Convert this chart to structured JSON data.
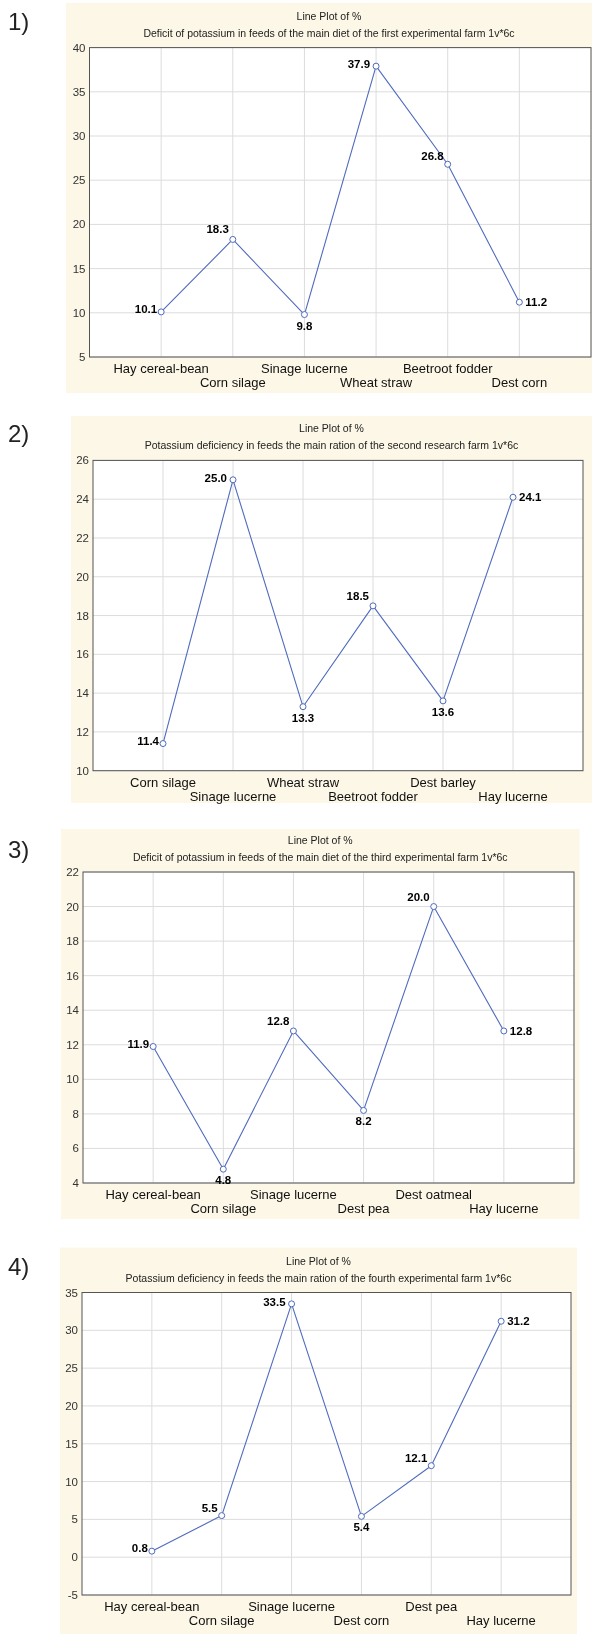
{
  "chart_data": [
    {
      "type": "line",
      "title": "Line Plot of %",
      "subtitle": "Deficit of potassium in feeds of the main diet of the first experimental farm 1v*6c",
      "annotations": [
        "1)"
      ],
      "categories": [
        "Hay cereal-bean",
        "Corn silage",
        "Sinage lucerne",
        "Wheat straw",
        "Beetroot fodder",
        "Dest corn"
      ],
      "values": [
        10.1,
        18.3,
        9.8,
        37.9,
        26.8,
        11.2
      ],
      "value_labels": [
        "10.1",
        "18.3",
        "9.8",
        "37.9",
        "26.8",
        "11.2"
      ],
      "color": "#4f6bbd",
      "ylim": [
        5,
        40
      ],
      "yticks": [
        5,
        10,
        15,
        20,
        25,
        30,
        35,
        40
      ],
      "grid": true,
      "marker": "circle"
    },
    {
      "type": "line",
      "title": "Line Plot of %",
      "subtitle": "Potassium deficiency in feeds the main ration of the second research farm 1v*6c",
      "annotations": [
        "2)"
      ],
      "categories": [
        "Corn silage",
        "Sinage lucerne",
        "Wheat straw",
        "Beetroot fodder",
        "Dest barley",
        "Hay lucerne"
      ],
      "values": [
        11.4,
        25.0,
        13.3,
        18.5,
        13.6,
        24.1
      ],
      "value_labels": [
        "11.4",
        "25.0",
        "13.3",
        "18.5",
        "13.6",
        "24.1"
      ],
      "color": "#4f6bbd",
      "ylim": [
        10,
        26
      ],
      "yticks": [
        10,
        12,
        14,
        16,
        18,
        20,
        22,
        24,
        26
      ],
      "grid": true,
      "marker": "circle"
    },
    {
      "type": "line",
      "title": "Line Plot of %",
      "subtitle": "Deficit of potassium in feeds of the main diet of the third experimental farm 1v*6c",
      "annotations": [
        "3)"
      ],
      "categories": [
        "Hay cereal-bean",
        "Corn silage",
        "Sinage lucerne",
        "Dest pea",
        "Dest oatmeal",
        "Hay lucerne"
      ],
      "values": [
        11.9,
        4.8,
        12.8,
        8.2,
        20.0,
        12.8
      ],
      "value_labels": [
        "11.9",
        "4.8",
        "12.8",
        "8.2",
        "20.0",
        "12.8"
      ],
      "color": "#4f6bbd",
      "ylim": [
        4,
        22
      ],
      "yticks": [
        4,
        6,
        8,
        10,
        12,
        14,
        16,
        18,
        20,
        22
      ],
      "grid": true,
      "marker": "circle"
    },
    {
      "type": "line",
      "title": "Line Plot of %",
      "subtitle": "Potassium deficiency in feeds the main ration of the fourth experimental farm 1v*6c",
      "annotations": [
        "4)"
      ],
      "categories": [
        "Hay cereal-bean",
        "Corn silage",
        "Sinage lucerne",
        "Dest corn",
        "Dest pea",
        "Hay lucerne"
      ],
      "values": [
        0.8,
        5.5,
        33.5,
        5.4,
        12.1,
        31.2
      ],
      "value_labels": [
        "0.8",
        "5.5",
        "33.5",
        "5.4",
        "12.1",
        "31.2"
      ],
      "color": "#4f6bbd",
      "ylim": [
        -5,
        35
      ],
      "yticks": [
        -5,
        0,
        5,
        10,
        15,
        20,
        25,
        30,
        35
      ],
      "grid": true,
      "marker": "circle"
    }
  ]
}
